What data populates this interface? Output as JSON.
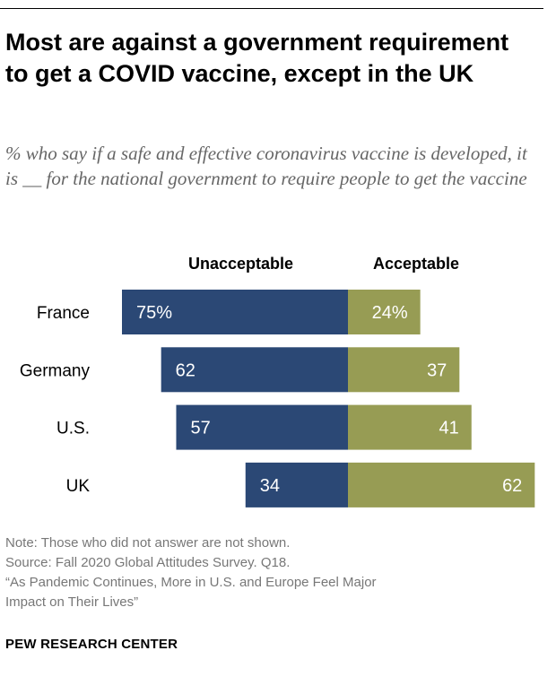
{
  "title": "Most are against a government requirement to get a COVID vaccine, except in the UK",
  "subtitle": "% who say if a safe and effective coronavirus vaccine is developed, it is __ for the national government to require people to get the vaccine",
  "notes": [
    "Note: Those who did not answer are not shown.",
    "Source: Fall 2020 Global Attitudes Survey. Q18.",
    "“As Pandemic Continues, More in U.S. and Europe Feel Major",
    "Impact on Their Lives”"
  ],
  "brand": "PEW RESEARCH CENTER",
  "colors": {
    "unacceptable": "#2b4875",
    "acceptable": "#979c54"
  },
  "chart_data": {
    "type": "bar",
    "orientation": "horizontal-diverging",
    "categories": [
      "France",
      "Germany",
      "U.S.",
      "UK"
    ],
    "series": [
      {
        "name": "Unacceptable",
        "values": [
          75,
          62,
          57,
          34
        ],
        "labels": [
          "75%",
          "62",
          "57",
          "34"
        ]
      },
      {
        "name": "Acceptable",
        "values": [
          24,
          37,
          41,
          62
        ],
        "labels": [
          "24%",
          "37",
          "41",
          "62"
        ]
      }
    ],
    "legend": "top"
  }
}
